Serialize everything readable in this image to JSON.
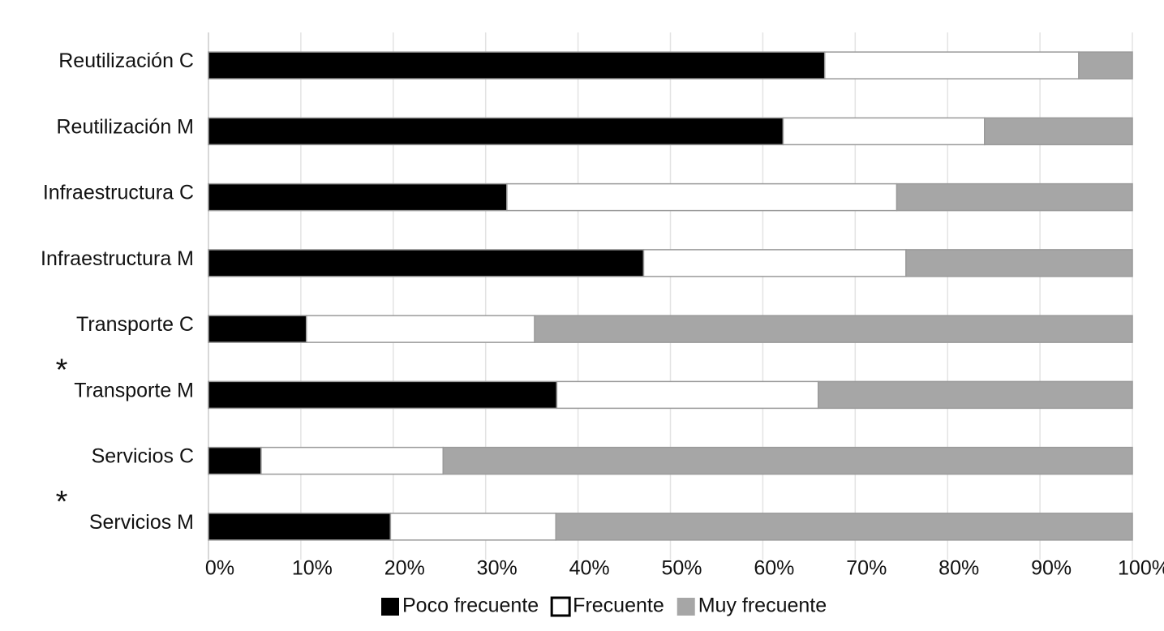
{
  "chart_data": {
    "type": "stacked-bar-horizontal",
    "categories": [
      "Reutilización C",
      "Reutilización M",
      "Infraestructura C",
      "Infraestructura M",
      "Transporte C",
      "Transporte M",
      "Servicios C",
      "Servicios M"
    ],
    "series": [
      {
        "name": "Poco frecuente",
        "color": "#000000",
        "values": [
          66.7,
          62.2,
          32.3,
          47.1,
          10.6,
          37.7,
          5.7,
          19.7
        ]
      },
      {
        "name": "Frecuente",
        "color": "#ffffff",
        "values": [
          27.5,
          21.8,
          42.2,
          28.4,
          24.7,
          28.3,
          19.7,
          17.9
        ]
      },
      {
        "name": "Muy frecuente",
        "color": "#a6a6a6",
        "values": [
          5.8,
          16.0,
          25.5,
          24.5,
          64.7,
          34.0,
          74.6,
          62.4
        ]
      }
    ],
    "xlim": [
      0,
      100
    ],
    "xticks": [
      {
        "value": 0,
        "label": "0%"
      },
      {
        "value": 10,
        "label": "10%"
      },
      {
        "value": 20,
        "label": "20%"
      },
      {
        "value": 30,
        "label": "30%"
      },
      {
        "value": 40,
        "label": "40%"
      },
      {
        "value": 50,
        "label": "50%"
      },
      {
        "value": 60,
        "label": "60%"
      },
      {
        "value": 70,
        "label": "70%"
      },
      {
        "value": 80,
        "label": "80%"
      },
      {
        "value": 90,
        "label": "90%"
      },
      {
        "value": 100,
        "label": "100%"
      }
    ],
    "grid": true,
    "legend": "bottom",
    "annotations": [
      "*",
      "*"
    ]
  }
}
